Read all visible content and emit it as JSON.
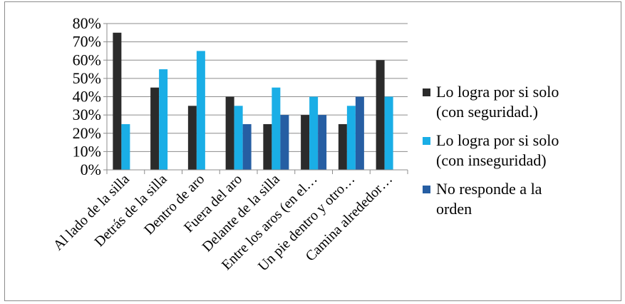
{
  "chart_data": {
    "type": "bar",
    "title": "",
    "xlabel": "",
    "ylabel": "",
    "ylim": [
      0,
      80
    ],
    "ytick_labels": [
      "0%",
      "10%",
      "20%",
      "30%",
      "40%",
      "50%",
      "60%",
      "70%",
      "80%"
    ],
    "categories": [
      "Al lado de la silla",
      "Detrás de la silla",
      "Dentro de aro",
      "Fuera del aro",
      "Delante de la silla",
      "Entre los aros (en el…",
      "Un pie dentro y otro…",
      "Camina alrededor…"
    ],
    "series": [
      {
        "name_lines": [
          "Lo logra por si solo",
          "(con seguridad.)"
        ],
        "color": "#2b2b2b",
        "values": [
          75,
          45,
          35,
          40,
          25,
          30,
          25,
          60
        ]
      },
      {
        "name_lines": [
          "Lo logra por si solo",
          "(con inseguridad)"
        ],
        "color": "#1aaee6",
        "values": [
          25,
          55,
          65,
          35,
          45,
          40,
          35,
          40
        ]
      },
      {
        "name_lines": [
          "No responde a la",
          "orden"
        ],
        "color": "#265ea3",
        "values": [
          0,
          0,
          0,
          25,
          30,
          30,
          40,
          0
        ]
      }
    ],
    "grid": true,
    "legend_position": "right"
  }
}
